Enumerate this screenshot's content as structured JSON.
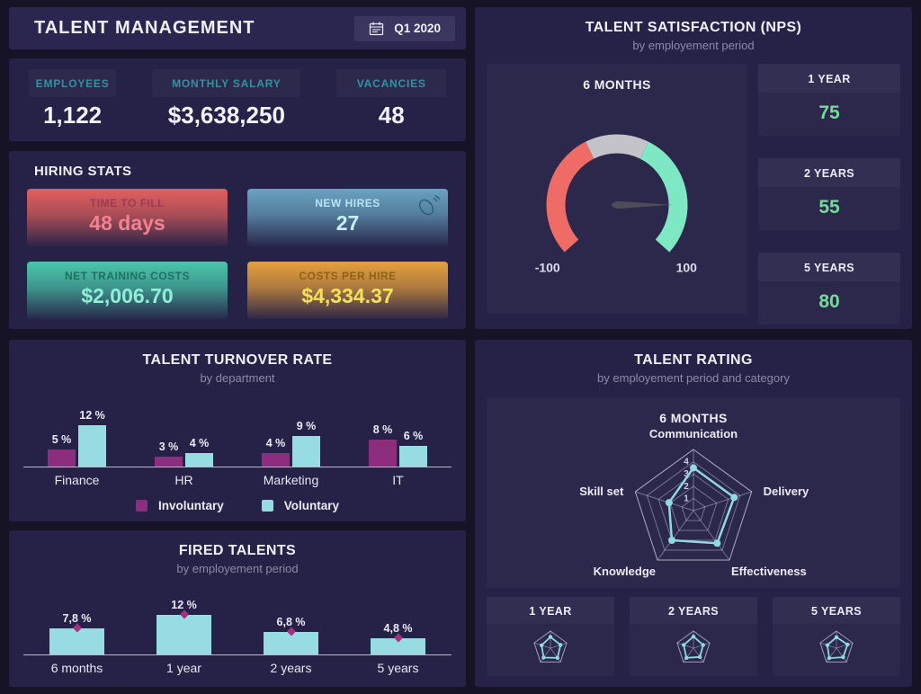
{
  "header": {
    "title": "TALENT MANAGEMENT",
    "period_badge": "Q1 2020",
    "period_icon": "calendar-icon"
  },
  "kpis": [
    {
      "label": "EMPLOYEES",
      "value": "1,122"
    },
    {
      "label": "MONTHLY SALARY",
      "value": "$3,638,250"
    },
    {
      "label": "VACANCIES",
      "value": "48"
    }
  ],
  "hiring_stats": {
    "title": "HIRING STATS",
    "cards": [
      {
        "label": "TIME TO FILL",
        "value": "48 days",
        "theme": "red"
      },
      {
        "label": "NEW HIRES",
        "value": "27",
        "theme": "blue",
        "icon": "mouse-click-icon"
      },
      {
        "label": "NET TRAINING COSTS",
        "value": "$2,006.70",
        "theme": "teal"
      },
      {
        "label": "COSTS PER HIRE",
        "value": "$4,334.37",
        "theme": "amber"
      }
    ]
  },
  "colors": {
    "background": "#171327",
    "panel": "#262247",
    "accent_teal_label": "#2f93a2",
    "mint_value": "#74da97",
    "involuntary": "#8d2d7d",
    "voluntary": "#97dbe3",
    "marker": "#a23180",
    "gauge_red": "#ef6b66",
    "gauge_gray": "#c4c3ca",
    "gauge_green": "#7de8c3",
    "needle": "#4e4c59",
    "radar_line": "#8fd8e4"
  },
  "chart_data": [
    {
      "id": "nps_gauge",
      "type": "gauge",
      "title": "TALENT SATISFACTION (NPS)",
      "subtitle": "by employement period",
      "group": "6 MONTHS",
      "min": -100,
      "max": 100,
      "tick_labels": [
        "-100",
        "100"
      ],
      "zones": [
        {
          "from": -100,
          "to": -20,
          "color": "#ef6b66"
        },
        {
          "from": -20,
          "to": 20,
          "color": "#c4c3ca"
        },
        {
          "from": 20,
          "to": 100,
          "color": "#7de8c3"
        }
      ],
      "needle_value": 68,
      "periods": [
        {
          "label": "1 YEAR",
          "value": 75
        },
        {
          "label": "2 YEARS",
          "value": 55
        },
        {
          "label": "5 YEARS",
          "value": 80
        }
      ]
    },
    {
      "id": "turnover",
      "type": "bar",
      "title": "TALENT TURNOVER RATE",
      "subtitle": "by department",
      "categories": [
        "Finance",
        "HR",
        "Marketing",
        "IT"
      ],
      "series": [
        {
          "name": "Involuntary",
          "color": "#8d2d7d",
          "values": [
            5,
            3,
            4,
            8
          ]
        },
        {
          "name": "Voluntary",
          "color": "#97dbe3",
          "values": [
            12,
            4,
            9,
            6
          ]
        }
      ],
      "value_suffix": " %",
      "ylim": [
        0,
        14
      ],
      "grid": false,
      "legend_position": "bottom"
    },
    {
      "id": "fired",
      "type": "bar",
      "title": "FIRED TALENTS",
      "subtitle": "by employement period",
      "categories": [
        "6 months",
        "1 year",
        "2 years",
        "5 years"
      ],
      "values": [
        7.8,
        12,
        6.8,
        4.8
      ],
      "labels": [
        "7,8 %",
        "12 %",
        "6,8 %",
        "4,8 %"
      ],
      "bar_color": "#97dbe3",
      "marker_color": "#a23180",
      "ylim": [
        0,
        14
      ],
      "grid": false
    },
    {
      "id": "rating_radar",
      "type": "radar",
      "title": "TALENT RATING",
      "subtitle": "by employement period and category",
      "group": "6 MONTHS",
      "axes": [
        "Communication",
        "Delivery",
        "Effectiveness",
        "Knowledge",
        "Skill set"
      ],
      "values": [
        3.5,
        3.5,
        3.3,
        3.0,
        2.1
      ],
      "scale_max": 5,
      "ring_labels": [
        "1",
        "2",
        "3",
        "4"
      ],
      "line_color": "#8fd8e4",
      "mini": [
        {
          "label": "1 YEAR",
          "values": [
            3.3,
            3.1,
            3.5,
            3.4,
            2.7
          ]
        },
        {
          "label": "2 YEARS",
          "values": [
            3.4,
            3.0,
            3.2,
            3.5,
            3.0
          ]
        },
        {
          "label": "5 YEARS",
          "values": [
            3.2,
            3.4,
            3.3,
            3.6,
            2.8
          ]
        }
      ]
    }
  ]
}
